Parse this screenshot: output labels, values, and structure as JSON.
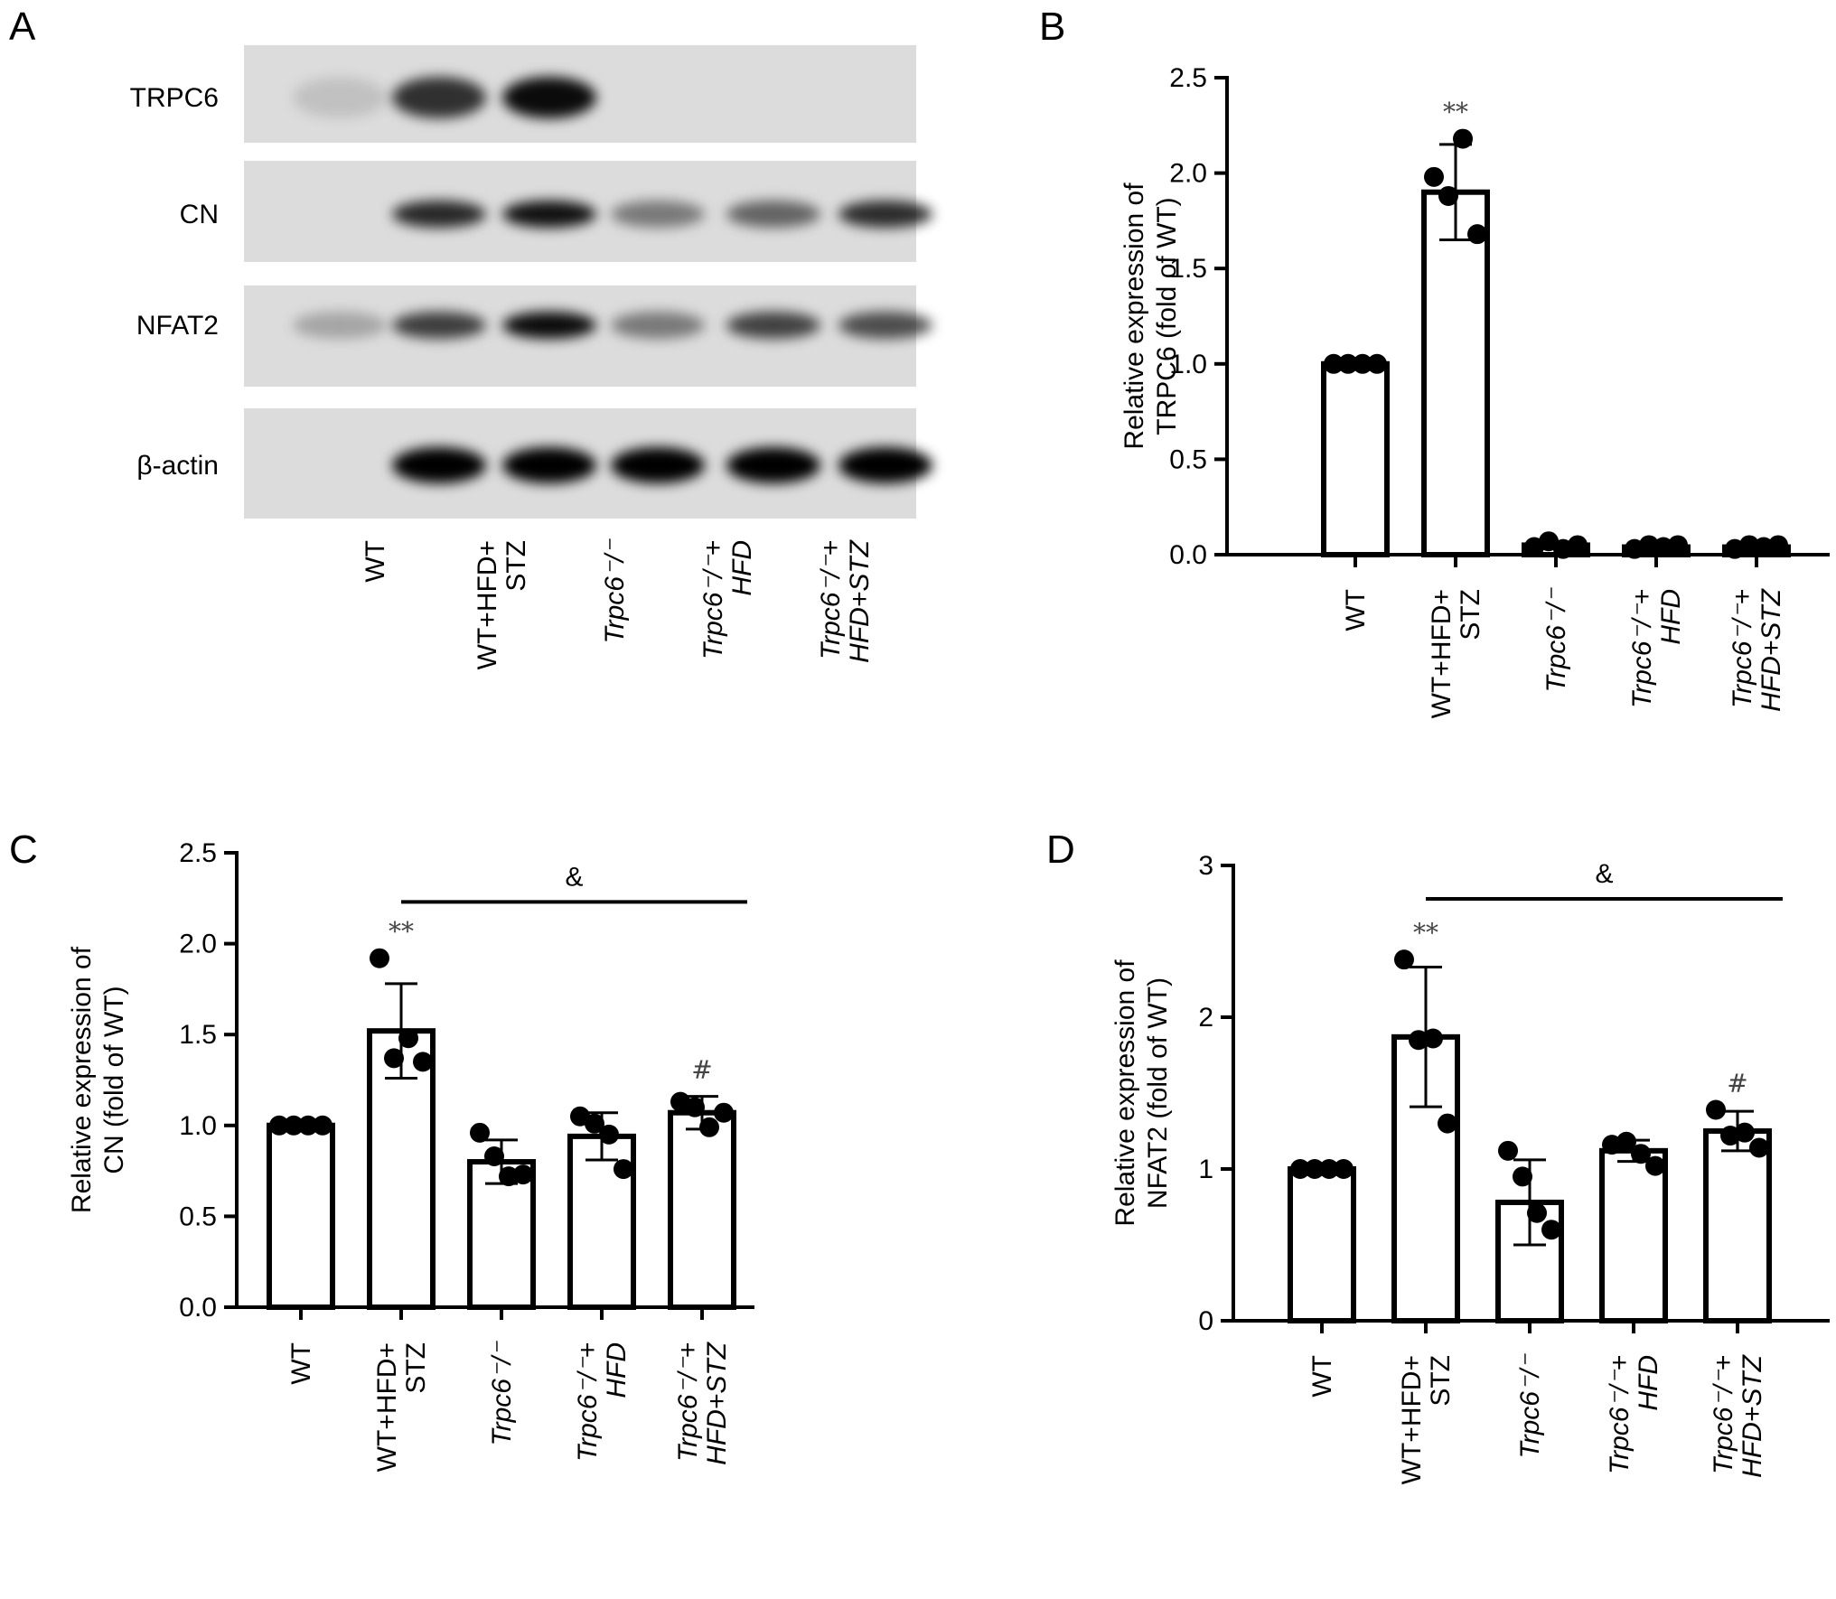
{
  "panels": {
    "A": {
      "letter": "A",
      "blot_rows": [
        "TRPC6",
        "CN",
        "NFAT2",
        "β-actin"
      ],
      "band_intensity": {
        "TRPC6": [
          0.12,
          0.78,
          0.95,
          0.0,
          0.0,
          0.0
        ],
        "CN": [
          0.0,
          0.82,
          0.92,
          0.45,
          0.55,
          0.8
        ],
        "NFAT2": [
          0.25,
          0.72,
          0.95,
          0.45,
          0.7,
          0.65
        ],
        "β-actin": [
          0.0,
          1.0,
          1.0,
          1.0,
          1.0,
          1.0
        ]
      },
      "lane_labels": [
        {
          "lines": [
            "WT"
          ],
          "italic": false
        },
        {
          "lines": [
            "WT+HFD+",
            "STZ"
          ],
          "italic": false
        },
        {
          "lines": [
            "Trpc6⁻/⁻"
          ],
          "italic": true
        },
        {
          "lines": [
            "Trpc6⁻/⁻+",
            "HFD"
          ],
          "italic": true
        },
        {
          "lines": [
            "Trpc6⁻/⁻+",
            "HFD+STZ"
          ],
          "italic": true
        }
      ]
    },
    "B": {
      "letter": "B"
    },
    "C": {
      "letter": "C"
    },
    "D": {
      "letter": "D"
    }
  },
  "chart_data": [
    {
      "panel": "B",
      "type": "bar",
      "categories": [
        "WT",
        "WT+HFD+STZ",
        "Trpc6⁻/⁻",
        "Trpc6⁻/⁻+HFD",
        "Trpc6⁻/⁻+HFD+STZ"
      ],
      "values": [
        1.0,
        1.9,
        0.05,
        0.04,
        0.04
      ],
      "error": [
        0.0,
        0.25,
        0.0,
        0.0,
        0.0
      ],
      "points": [
        [
          1.0,
          1.0,
          1.0,
          1.0
        ],
        [
          1.98,
          1.88,
          2.18,
          1.68
        ],
        [
          0.04,
          0.07,
          0.03,
          0.05
        ],
        [
          0.03,
          0.05,
          0.04,
          0.05
        ],
        [
          0.03,
          0.05,
          0.04,
          0.05
        ]
      ],
      "annotations": [
        "",
        "**",
        "",
        "",
        ""
      ],
      "ylabel": "Relative expression of\nTRPC6 (fold of WT)",
      "ylim": [
        0,
        2.5
      ],
      "yticks": [
        "0.0",
        "0.5",
        "1.0",
        "1.5",
        "2.0",
        "2.5"
      ],
      "bracket": null
    },
    {
      "panel": "C",
      "type": "bar",
      "categories": [
        "WT",
        "WT+HFD+STZ",
        "Trpc6⁻/⁻",
        "Trpc6⁻/⁻+HFD",
        "Trpc6⁻/⁻+HFD+STZ"
      ],
      "values": [
        1.0,
        1.52,
        0.8,
        0.94,
        1.07
      ],
      "error": [
        0.0,
        0.26,
        0.12,
        0.13,
        0.09
      ],
      "points": [
        [
          1.0,
          1.0,
          1.0,
          1.0
        ],
        [
          1.92,
          1.37,
          1.48,
          1.35
        ],
        [
          0.96,
          0.83,
          0.72,
          0.73
        ],
        [
          1.05,
          1.01,
          0.95,
          0.76
        ],
        [
          1.13,
          1.1,
          0.99,
          1.07
        ]
      ],
      "annotations": [
        "",
        "**",
        "",
        "",
        "#"
      ],
      "ylabel": "Relative expression of\nCN (fold of WT)",
      "ylim": [
        0,
        2.5
      ],
      "yticks": [
        "0.0",
        "0.5",
        "1.0",
        "1.5",
        "2.0",
        "2.5"
      ],
      "bracket": {
        "from": 1,
        "to": 4,
        "value": 2.23,
        "label": "&"
      }
    },
    {
      "panel": "D",
      "type": "bar",
      "categories": [
        "WT",
        "WT+HFD+STZ",
        "Trpc6⁻/⁻",
        "Trpc6⁻/⁻+HFD",
        "Trpc6⁻/⁻+HFD+STZ"
      ],
      "values": [
        1.0,
        1.87,
        0.78,
        1.12,
        1.25
      ],
      "error": [
        0.0,
        0.46,
        0.28,
        0.07,
        0.13
      ],
      "points": [
        [
          1.0,
          1.0,
          1.0,
          1.0
        ],
        [
          2.38,
          1.85,
          1.86,
          1.3
        ],
        [
          1.12,
          0.95,
          0.71,
          0.6
        ],
        [
          1.16,
          1.18,
          1.1,
          1.02
        ],
        [
          1.39,
          1.22,
          1.24,
          1.14
        ]
      ],
      "annotations": [
        "",
        "**",
        "",
        "",
        "#"
      ],
      "ylabel": "Relative expression of\nNFAT2 (fold of WT)",
      "ylim": [
        0,
        3
      ],
      "yticks": [
        "0",
        "1",
        "2",
        "3"
      ],
      "bracket": {
        "from": 1,
        "to": 4,
        "value": 2.78,
        "label": "&"
      }
    }
  ]
}
